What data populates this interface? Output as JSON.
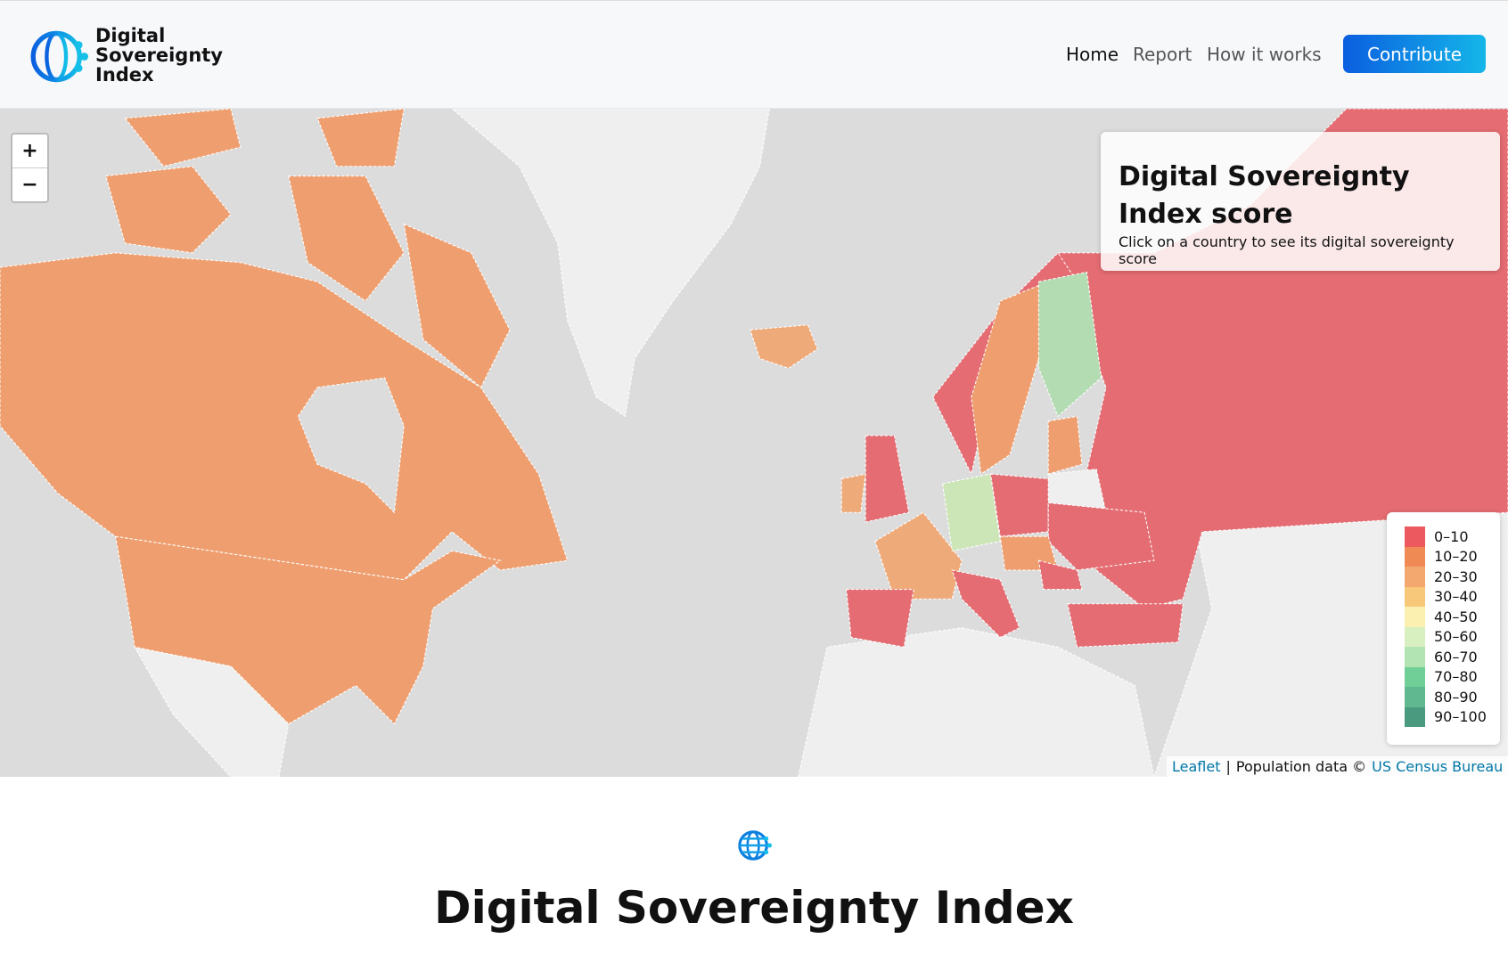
{
  "header": {
    "logo_text": [
      "Digital",
      "Sovereignty",
      "Index"
    ],
    "nav": [
      "Home",
      "Report",
      "How it works"
    ],
    "button": "Contribute"
  },
  "map": {
    "zoom": [
      "+",
      "−"
    ],
    "info": {
      "title": "Digital Sovereignty Index score",
      "text": "Click on a country to see its digital sovereignty score"
    },
    "legend": [
      {
        "label": "0–10",
        "color": "#ec5a60"
      },
      {
        "label": "10–20",
        "color": "#f08a55"
      },
      {
        "label": "20–30",
        "color": "#f3a870"
      },
      {
        "label": "30–40",
        "color": "#f7c77a"
      },
      {
        "label": "40–50",
        "color": "#fbf0b0"
      },
      {
        "label": "50–60",
        "color": "#d8efc0"
      },
      {
        "label": "60–70",
        "color": "#b2e3b3"
      },
      {
        "label": "70–80",
        "color": "#6fcf97"
      },
      {
        "label": "80–90",
        "color": "#5fb890"
      },
      {
        "label": "90–100",
        "color": "#4a9a80"
      }
    ],
    "attribution": {
      "leaflet": "Leaflet",
      "separator": "|",
      "text": "Population data ©",
      "source": "US Census Bureau"
    }
  },
  "footer": {
    "title": "Digital Sovereignty Index"
  }
}
